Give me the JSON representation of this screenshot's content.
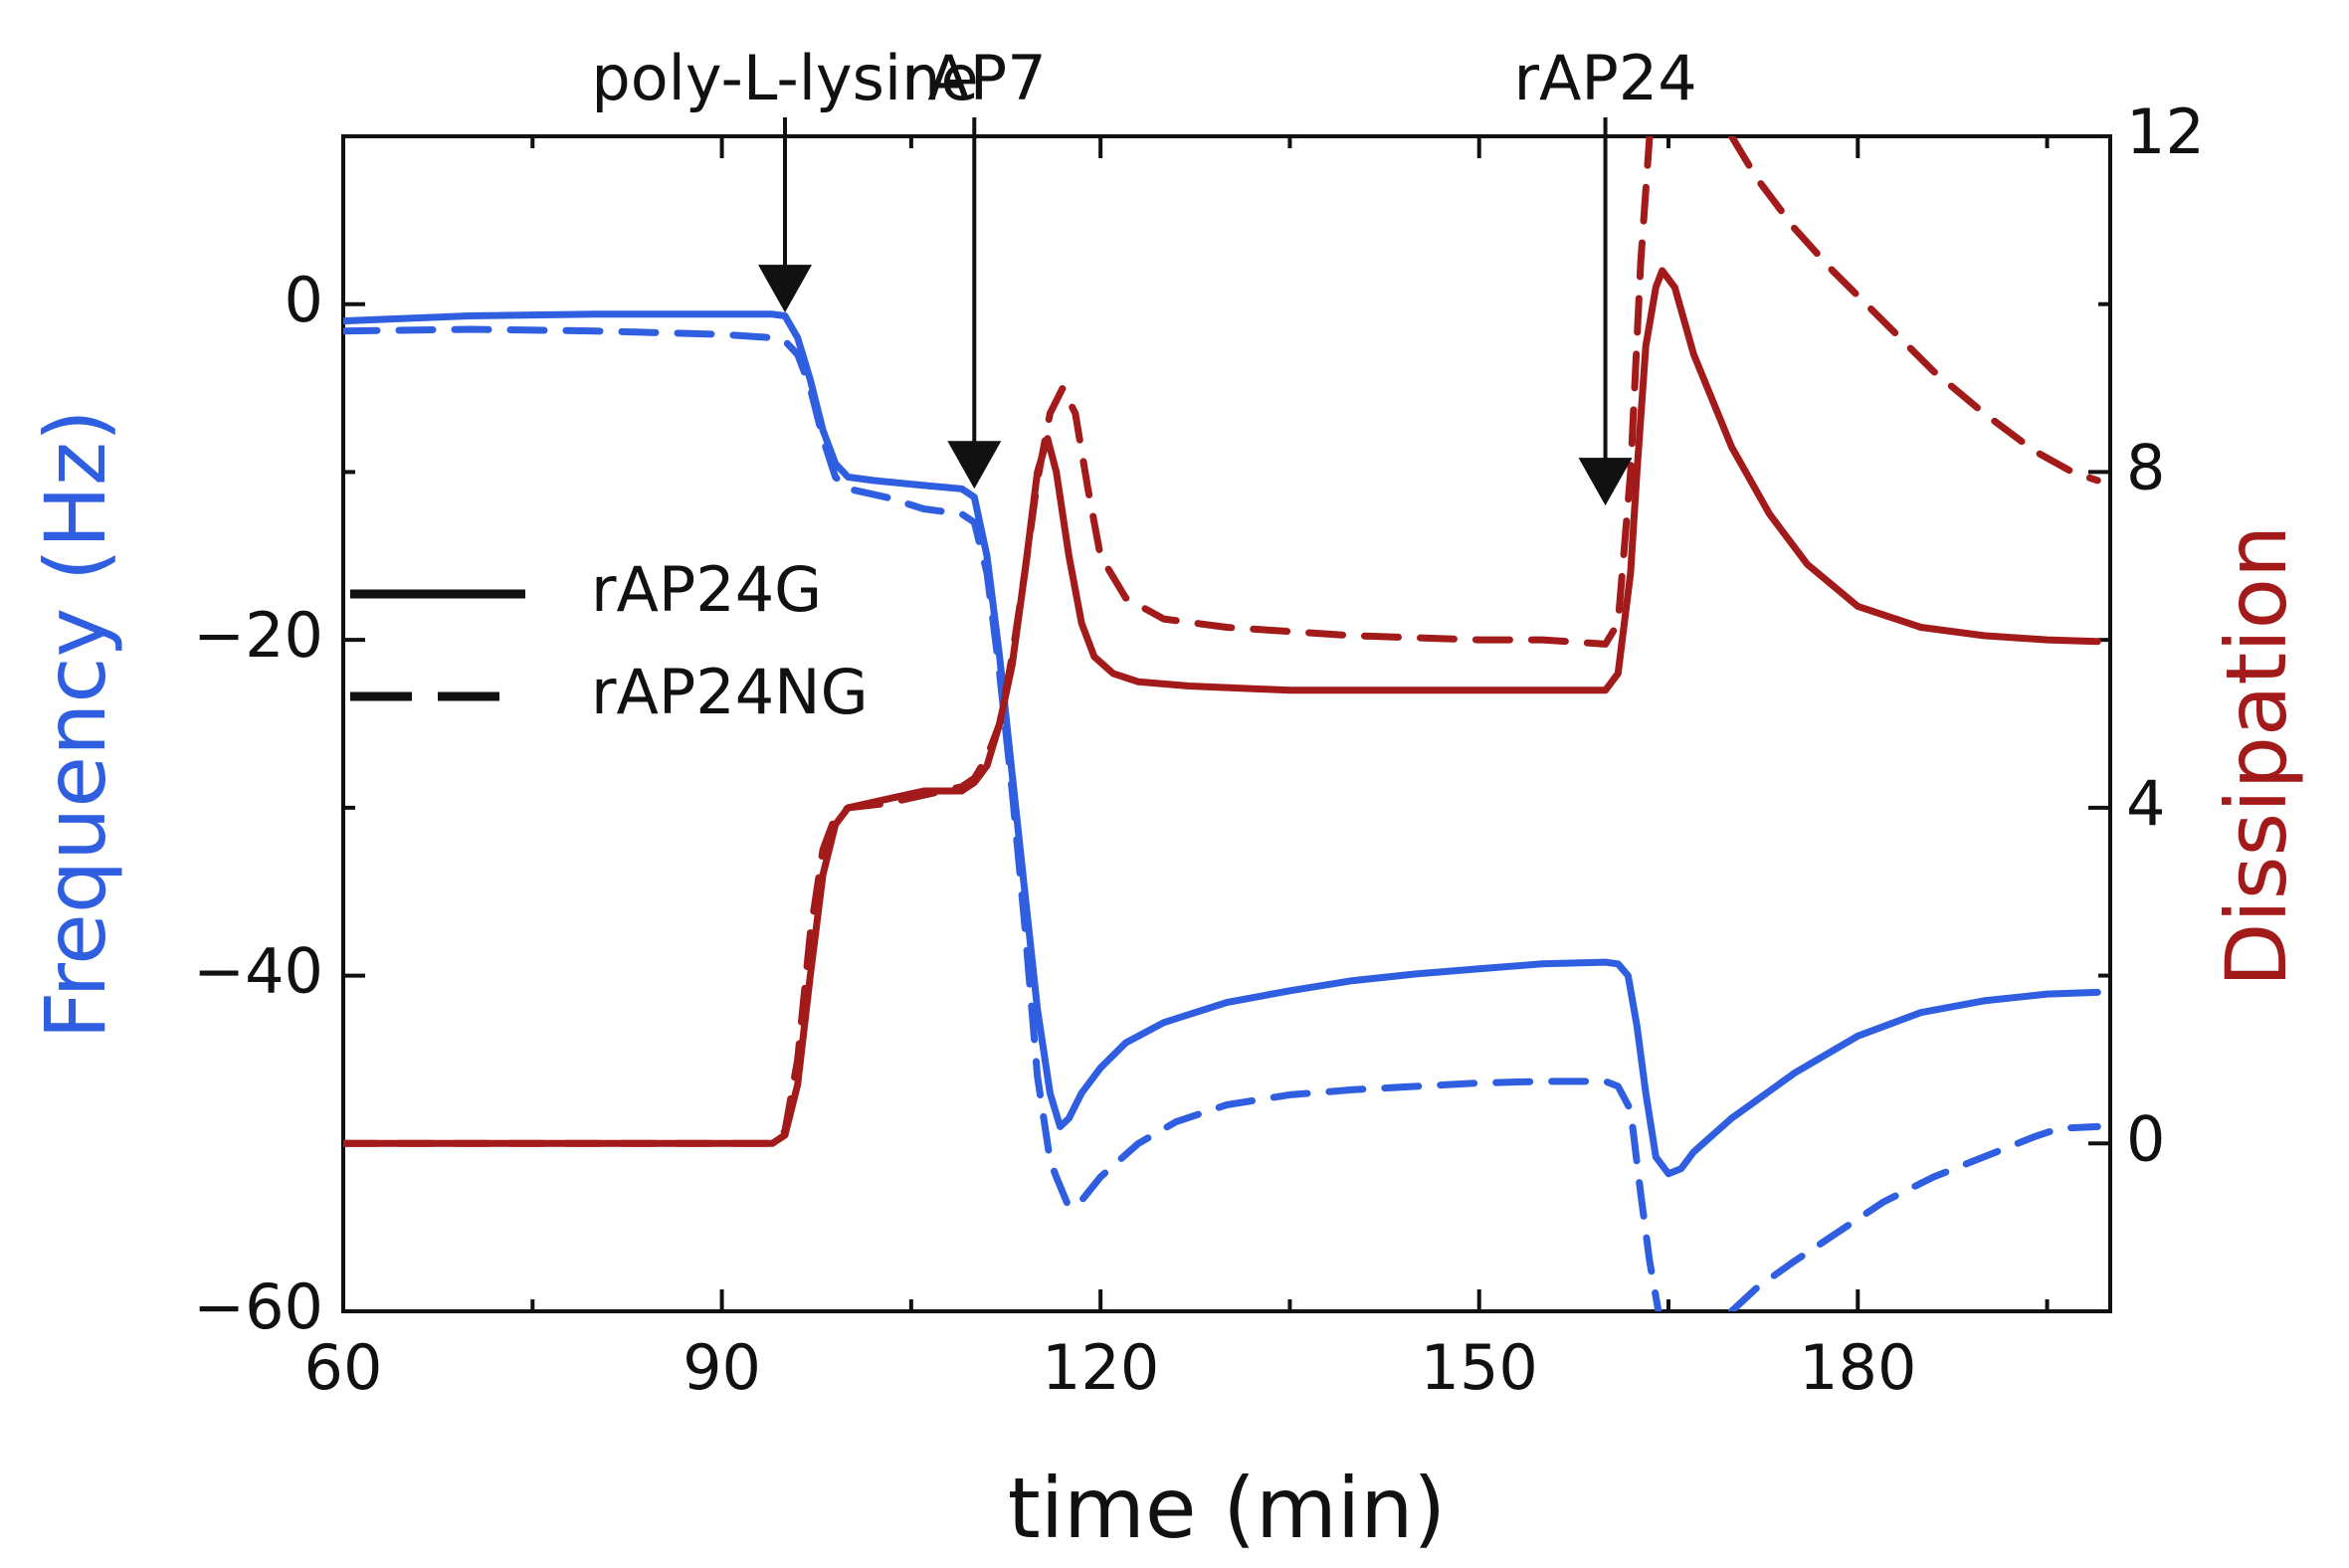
{
  "chart_data": {
    "type": "line",
    "title": "",
    "xlabel": "time (min)",
    "ylabel_left": "Frequency (Hz)",
    "ylabel_right": "Dissipation",
    "xlim": [
      60,
      200
    ],
    "ylim_left": [
      -60,
      10
    ],
    "ylim_right": [
      -2,
      12
    ],
    "xticks": [
      60,
      90,
      120,
      150,
      180
    ],
    "xtick_labels": [
      "60",
      "90",
      "120",
      "150",
      "180"
    ],
    "yticks_left": [
      0,
      -20,
      -40,
      -60
    ],
    "ytick_labels_left": [
      "0",
      "−20",
      "−40",
      "−60"
    ],
    "yticks_right": [
      0,
      4,
      8,
      12
    ],
    "ytick_labels_right": [
      "0",
      "4",
      "8",
      "12"
    ],
    "colors": {
      "frequency": "#2f5fe0",
      "dissipation": "#a31a1a",
      "axis": "#111111"
    },
    "legend": {
      "position": "middle-left",
      "entries": [
        {
          "label": "rAP24G",
          "style": "solid"
        },
        {
          "label": "rAP24NG",
          "style": "dashed"
        }
      ]
    },
    "annotations": [
      {
        "text": "poly-L-lysine",
        "x": 95,
        "arrow_tip_y": -0.5
      },
      {
        "text": "rAP7",
        "x": 110,
        "arrow_tip_y": -11
      },
      {
        "text": "rAP24",
        "x": 160,
        "arrow_tip_y": -12
      }
    ],
    "series": [
      {
        "name": "Frequency rAP24G",
        "axis": "left",
        "quantity": "frequency",
        "style": "solid",
        "points": [
          [
            60,
            -1
          ],
          [
            70,
            -0.7
          ],
          [
            80,
            -0.6
          ],
          [
            90,
            -0.6
          ],
          [
            94,
            -0.6
          ],
          [
            95,
            -0.7
          ],
          [
            96,
            -2
          ],
          [
            97,
            -4.5
          ],
          [
            98,
            -7.5
          ],
          [
            99,
            -9.5
          ],
          [
            100,
            -10.3
          ],
          [
            102,
            -10.5
          ],
          [
            106,
            -10.8
          ],
          [
            109,
            -11
          ],
          [
            110,
            -11.5
          ],
          [
            111,
            -15
          ],
          [
            112,
            -21
          ],
          [
            113,
            -28
          ],
          [
            114,
            -35
          ],
          [
            115,
            -42
          ],
          [
            116,
            -47
          ],
          [
            116.8,
            -49
          ],
          [
            117.5,
            -48.5
          ],
          [
            118.5,
            -47
          ],
          [
            120,
            -45.5
          ],
          [
            122,
            -44
          ],
          [
            125,
            -42.8
          ],
          [
            130,
            -41.6
          ],
          [
            135,
            -40.9
          ],
          [
            140,
            -40.3
          ],
          [
            145,
            -39.9
          ],
          [
            150,
            -39.6
          ],
          [
            155,
            -39.3
          ],
          [
            160,
            -39.2
          ],
          [
            161,
            -39.3
          ],
          [
            161.8,
            -40
          ],
          [
            162.5,
            -43
          ],
          [
            163.2,
            -47
          ],
          [
            164,
            -50.8
          ],
          [
            165,
            -51.8
          ],
          [
            166,
            -51.5
          ],
          [
            167,
            -50.5
          ],
          [
            170,
            -48.5
          ],
          [
            175,
            -45.8
          ],
          [
            180,
            -43.6
          ],
          [
            185,
            -42.2
          ],
          [
            190,
            -41.5
          ],
          [
            195,
            -41.1
          ],
          [
            199,
            -41
          ]
        ]
      },
      {
        "name": "Frequency rAP24NG",
        "axis": "left",
        "quantity": "frequency",
        "style": "dashed",
        "points": [
          [
            60,
            -1.6
          ],
          [
            70,
            -1.5
          ],
          [
            80,
            -1.6
          ],
          [
            90,
            -1.8
          ],
          [
            94,
            -2
          ],
          [
            95,
            -2.2
          ],
          [
            96,
            -3
          ],
          [
            97,
            -5
          ],
          [
            98,
            -8
          ],
          [
            99,
            -10.3
          ],
          [
            100,
            -11
          ],
          [
            103,
            -11.5
          ],
          [
            106,
            -12.2
          ],
          [
            109,
            -12.5
          ],
          [
            110,
            -13
          ],
          [
            111,
            -16
          ],
          [
            112,
            -22
          ],
          [
            113,
            -29
          ],
          [
            114,
            -37
          ],
          [
            115,
            -46
          ],
          [
            116,
            -51
          ],
          [
            116.5,
            -52
          ],
          [
            117.5,
            -53.8
          ],
          [
            118.5,
            -53.4
          ],
          [
            120,
            -52
          ],
          [
            123,
            -50
          ],
          [
            126,
            -48.7
          ],
          [
            130,
            -47.7
          ],
          [
            135,
            -47.1
          ],
          [
            140,
            -46.8
          ],
          [
            145,
            -46.6
          ],
          [
            150,
            -46.4
          ],
          [
            155,
            -46.3
          ],
          [
            160,
            -46.3
          ],
          [
            161,
            -46.6
          ],
          [
            162,
            -48
          ],
          [
            162.8,
            -53
          ],
          [
            163.5,
            -57
          ],
          [
            164.2,
            -60
          ]
        ]
      },
      {
        "name": "Frequency rAP24NG (recovery)",
        "axis": "left",
        "quantity": "frequency",
        "style": "dashed",
        "points": [
          [
            170,
            -60
          ],
          [
            172,
            -58.6
          ],
          [
            175,
            -57
          ],
          [
            178,
            -55.5
          ],
          [
            182,
            -53.5
          ],
          [
            186,
            -52
          ],
          [
            190,
            -50.8
          ],
          [
            194,
            -49.6
          ],
          [
            196,
            -49.1
          ],
          [
            199,
            -49
          ]
        ]
      },
      {
        "name": "Dissipation rAP24G",
        "axis": "right",
        "quantity": "dissipation",
        "style": "solid",
        "points": [
          [
            60,
            0
          ],
          [
            80,
            0
          ],
          [
            90,
            0
          ],
          [
            94,
            0
          ],
          [
            95,
            0.1
          ],
          [
            96,
            0.7
          ],
          [
            97,
            2
          ],
          [
            98,
            3.2
          ],
          [
            99,
            3.8
          ],
          [
            100,
            4
          ],
          [
            103,
            4.1
          ],
          [
            106,
            4.2
          ],
          [
            109,
            4.2
          ],
          [
            110,
            4.3
          ],
          [
            111,
            4.5
          ],
          [
            112,
            5
          ],
          [
            113,
            5.7
          ],
          [
            114,
            6.8
          ],
          [
            115,
            8
          ],
          [
            115.8,
            8.4
          ],
          [
            116.5,
            8
          ],
          [
            117.5,
            7
          ],
          [
            118.5,
            6.2
          ],
          [
            119.5,
            5.8
          ],
          [
            121,
            5.6
          ],
          [
            123,
            5.5
          ],
          [
            127,
            5.45
          ],
          [
            135,
            5.4
          ],
          [
            145,
            5.4
          ],
          [
            155,
            5.4
          ],
          [
            160,
            5.4
          ],
          [
            161,
            5.6
          ],
          [
            162,
            6.8
          ],
          [
            162.5,
            8
          ],
          [
            163.2,
            9.5
          ],
          [
            164,
            10.2
          ],
          [
            164.5,
            10.4
          ],
          [
            165.5,
            10.2
          ],
          [
            167,
            9.4
          ],
          [
            170,
            8.3
          ],
          [
            173,
            7.5
          ],
          [
            176,
            6.9
          ],
          [
            180,
            6.4
          ],
          [
            185,
            6.15
          ],
          [
            190,
            6.05
          ],
          [
            195,
            6
          ],
          [
            199,
            5.98
          ]
        ]
      },
      {
        "name": "Dissipation rAP24NG",
        "axis": "right",
        "quantity": "dissipation",
        "style": "dashed",
        "points": [
          [
            60,
            0
          ],
          [
            80,
            0
          ],
          [
            90,
            0
          ],
          [
            94,
            0
          ],
          [
            95,
            0.15
          ],
          [
            96,
            1
          ],
          [
            97,
            2.5
          ],
          [
            98,
            3.5
          ],
          [
            99,
            3.9
          ],
          [
            100,
            4
          ],
          [
            103,
            4.05
          ],
          [
            106,
            4.15
          ],
          [
            109,
            4.25
          ],
          [
            110,
            4.35
          ],
          [
            111,
            4.6
          ],
          [
            112,
            5
          ],
          [
            113,
            5.8
          ],
          [
            114,
            6.8
          ],
          [
            115,
            7.9
          ],
          [
            116,
            8.7
          ],
          [
            117,
            9
          ],
          [
            118,
            8.7
          ],
          [
            119,
            7.8
          ],
          [
            120,
            7
          ],
          [
            122,
            6.5
          ],
          [
            125,
            6.25
          ],
          [
            130,
            6.15
          ],
          [
            140,
            6.05
          ],
          [
            150,
            6.0
          ],
          [
            155,
            6.0
          ],
          [
            160,
            5.95
          ],
          [
            161,
            6.2
          ],
          [
            162,
            8
          ],
          [
            162.8,
            10.5
          ],
          [
            163.5,
            12
          ]
        ]
      },
      {
        "name": "Dissipation rAP24NG (decay)",
        "axis": "right",
        "quantity": "dissipation",
        "style": "dashed",
        "points": [
          [
            170,
            12
          ],
          [
            172,
            11.5
          ],
          [
            175,
            10.9
          ],
          [
            178,
            10.4
          ],
          [
            182,
            9.8
          ],
          [
            186,
            9.2
          ],
          [
            190,
            8.7
          ],
          [
            194,
            8.25
          ],
          [
            197,
            8
          ],
          [
            199,
            7.9
          ]
        ]
      }
    ]
  }
}
